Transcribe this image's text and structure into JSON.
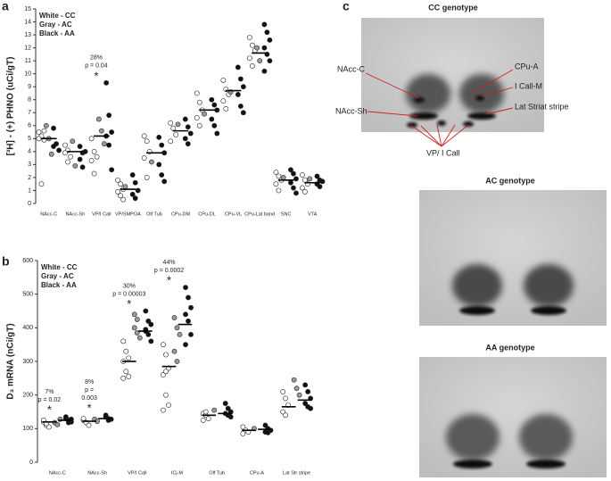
{
  "chart_data": [
    {
      "type": "strip",
      "label": "a",
      "ylabel": "[³H] - (+) PHNO (uCi/gT)",
      "categories": [
        "NAcc-C",
        "NAcc-Sh",
        "VP/I Call",
        "VP/SMPOA",
        "Olf Tub",
        "CPu-DM",
        "CPu-DL",
        "CPu-VL",
        "CPu-Lat band",
        "SNC",
        "VTA"
      ],
      "series": [
        {
          "name": "White - CC",
          "color": "#ffffff",
          "values": [
            [
              5.5,
              5.2,
              4.9,
              5.0,
              1.5,
              5.6
            ],
            [
              4.5,
              4.1,
              3.6,
              3.9,
              3.2
            ],
            [
              5.0,
              4.0,
              3.6,
              3.3,
              2.3
            ],
            [
              1.8,
              1.5,
              1.1,
              0.9,
              0.6,
              0.3
            ],
            [
              5.2,
              4.8,
              4.0,
              3.5,
              2.0
            ],
            [
              6.2,
              5.8,
              5.3,
              4.8
            ],
            [
              8.5,
              7.8,
              7.2,
              6.6,
              6.0
            ],
            [
              9.5,
              8.8,
              8.4,
              7.9,
              7.3
            ],
            [
              12.8,
              12.2,
              11.8,
              11.2,
              10.6
            ],
            [
              2.4,
              2.1,
              1.8,
              1.5,
              1.0
            ],
            [
              2.2,
              1.8,
              1.5,
              1.2,
              0.9
            ]
          ]
        },
        {
          "name": "Gray - AC",
          "color": "#9a9a9a",
          "values": [
            [
              6.0,
              5.0,
              3.8
            ],
            [
              4.8,
              2.9
            ],
            [
              6.5,
              5.6,
              4.6
            ],
            [
              1.3
            ],
            [
              3.2
            ],
            [
              6.1
            ],
            [
              6.9
            ],
            [
              8.6
            ],
            [
              12.0,
              11.0
            ],
            [
              2.0
            ],
            [
              1.9
            ]
          ]
        },
        {
          "name": "Black - AA",
          "color": "#111111",
          "values": [
            [
              5.8,
              4.6,
              4.1,
              4.4
            ],
            [
              4.4,
              3.9,
              4.0,
              3.4,
              2.8
            ],
            [
              9.3,
              6.8,
              5.5,
              5.2,
              4.5,
              2.6
            ],
            [
              2.2,
              1.6,
              1.0,
              0.7,
              0.4
            ],
            [
              5.1,
              4.5,
              3.9,
              3.0,
              2.2,
              1.7
            ],
            [
              6.5,
              5.9,
              5.4,
              5.0,
              4.6
            ],
            [
              8.0,
              7.6,
              7.2,
              6.5,
              6.0,
              5.4
            ],
            [
              10.5,
              9.6,
              9.0,
              8.4,
              7.5,
              7.0
            ],
            [
              13.8,
              13.2,
              12.6,
              12.0,
              11.5,
              11.0,
              10.2
            ],
            [
              2.6,
              2.3,
              1.9,
              1.6,
              1.2,
              0.8
            ],
            [
              2.1,
              1.8,
              1.7,
              1.5,
              1.3
            ]
          ]
        }
      ],
      "means": [
        [
          5.0
        ],
        [
          4.0
        ],
        [
          5.2
        ],
        [
          1.1
        ],
        [
          3.9
        ],
        [
          5.6
        ],
        [
          7.2
        ],
        [
          8.7
        ],
        [
          11.6
        ],
        [
          1.8
        ],
        [
          1.6
        ]
      ],
      "annotations": [
        null,
        null,
        [
          "28%",
          "p = 0.04",
          "*"
        ],
        null,
        null,
        null,
        null,
        null,
        null,
        null,
        null
      ],
      "ylim": [
        0,
        15
      ],
      "yticks": [
        0,
        1,
        2,
        3,
        4,
        5,
        6,
        7,
        8,
        9,
        10,
        11,
        12,
        13,
        14,
        15
      ]
    },
    {
      "type": "strip",
      "label": "b",
      "ylabel": "D₃ mRNA (nCi/gT)",
      "categories": [
        "NAcc-C",
        "NAcc-Sh",
        "VP/I Call",
        "ICj-M",
        "Olf Tub",
        "CPu-A",
        "Lat Str stripe"
      ],
      "series": [
        {
          "name": "White - CC",
          "color": "#ffffff",
          "values": [
            [
              120,
              110,
              105,
              125,
              115
            ],
            [
              125,
              118,
              110,
              130
            ],
            [
              360,
              330,
              310,
              300,
              270,
              255,
              250
            ],
            [
              350,
              320,
              280,
              260,
              200,
              170,
              155,
              270
            ],
            [
              145,
              140,
              130,
              125,
              150
            ],
            [
              105,
              95,
              90,
              85
            ],
            [
              210,
              190,
              170,
              150,
              140
            ]
          ]
        },
        {
          "name": "Gray - AC",
          "color": "#9a9a9a",
          "values": [
            [
              118,
              112,
              128
            ],
            [
              128,
              122
            ],
            [
              400,
              385,
              370,
              440,
              425
            ],
            [
              430,
              400,
              380,
              330,
              300
            ],
            [
              155
            ],
            [
              100
            ],
            [
              245,
              220,
              200
            ]
          ]
        },
        {
          "name": "Black - AA",
          "color": "#111111",
          "values": [
            [
              130,
              125,
              120,
              135,
              118,
              128
            ],
            [
              135,
              130,
              128,
              140,
              125
            ],
            [
              450,
              420,
              410,
              395,
              380,
              360,
              390
            ],
            [
              520,
              490,
              460,
              440,
              420,
              380,
              350
            ],
            [
              175,
              160,
              150,
              145,
              140,
              135
            ],
            [
              110,
              100,
              95,
              90,
              88
            ],
            [
              230,
              210,
              190,
              175,
              165,
              160
            ]
          ]
        }
      ],
      "means": [
        [
          120,
          125
        ],
        [
          122,
          130
        ],
        [
          300,
          390
        ],
        [
          285,
          410
        ],
        [
          140,
          145
        ],
        [
          95,
          98
        ],
        [
          165,
          185
        ]
      ],
      "annotations": [
        [
          "7%",
          "p = 0.02",
          "*"
        ],
        [
          "8%",
          "p =",
          "0.003",
          "*"
        ],
        [
          "30%",
          "p = 0.00003",
          "*"
        ],
        [
          "44%",
          "p = 0.0002",
          "*"
        ],
        null,
        null,
        null
      ],
      "ylim": [
        0,
        600
      ],
      "yticks": [
        0,
        100,
        200,
        300,
        400,
        500,
        600
      ]
    }
  ],
  "panel_c": {
    "label": "c",
    "images": [
      {
        "title": "CC genotype",
        "labels": [
          "NAcc-C",
          "CPu-A",
          "I Call-M",
          "NAcc-Sh",
          "Lat Striat stripe",
          "VP/ I Call"
        ]
      },
      {
        "title": "AC genotype"
      },
      {
        "title": "AA genotype"
      }
    ]
  }
}
